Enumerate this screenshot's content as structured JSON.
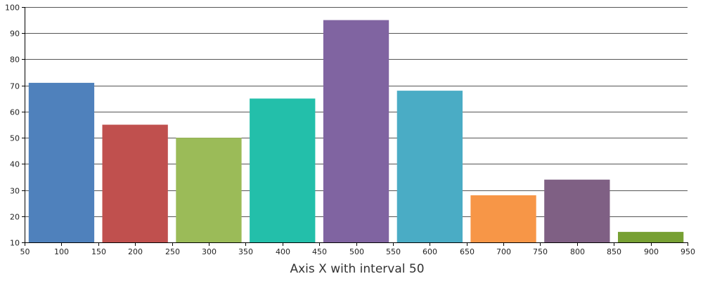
{
  "chart_data": {
    "type": "bar",
    "x": [
      100,
      200,
      300,
      400,
      500,
      600,
      700,
      800,
      900
    ],
    "values": [
      71,
      55,
      50,
      65,
      95,
      68,
      28,
      34,
      14
    ],
    "bar_colors": [
      "#4F81BC",
      "#C0504E",
      "#9BBB58",
      "#23BFAA",
      "#8064A1",
      "#4AACC5",
      "#F79647",
      "#7F6084",
      "#77A033"
    ],
    "xlim": [
      50,
      950
    ],
    "ylim": [
      10,
      100
    ],
    "x_interval": 50,
    "y_interval": 10,
    "xlabel": "Axis X with interval 50",
    "ylabel": "",
    "title": "",
    "grid": true
  }
}
